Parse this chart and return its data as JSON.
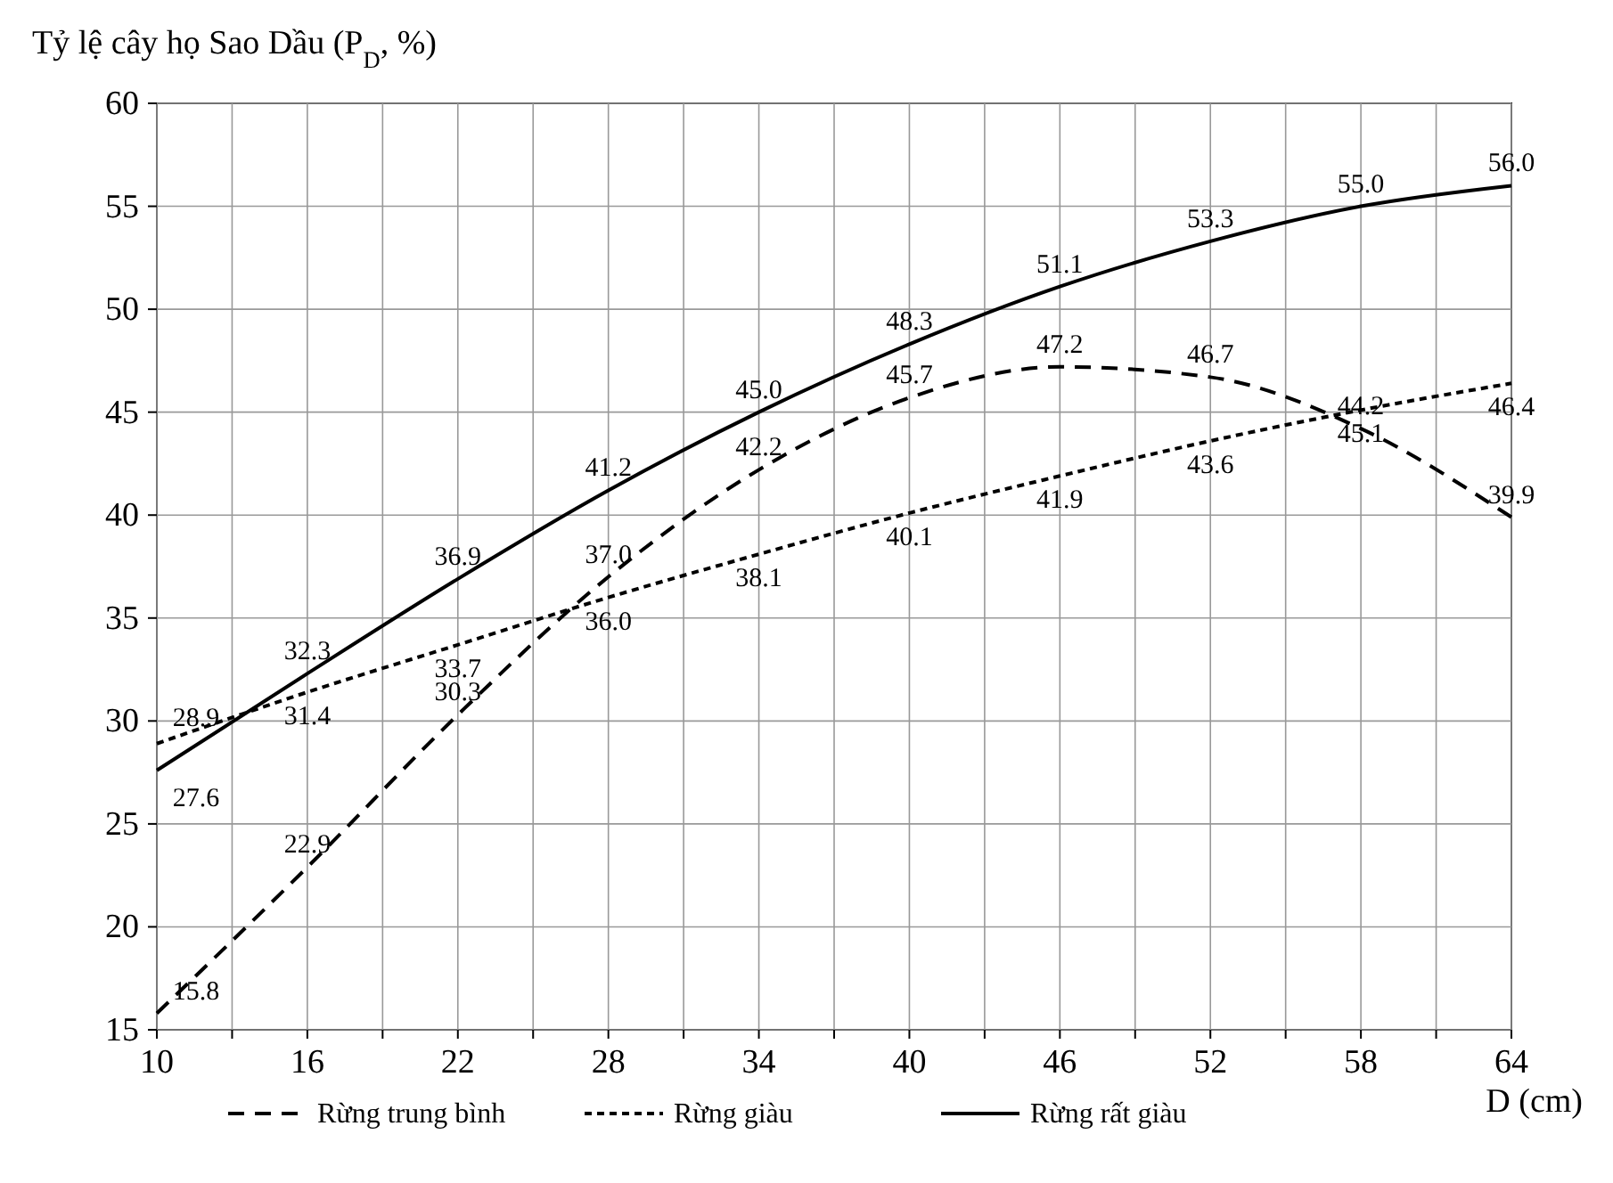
{
  "chart_data": {
    "type": "line",
    "ylabel": "Tỷ lệ cây họ Sao Dầu (P$_{D}$, %)",
    "xlabel": "D (cm)",
    "x": [
      10,
      16,
      22,
      28,
      34,
      40,
      46,
      52,
      58,
      64
    ],
    "xlim": [
      10,
      64
    ],
    "xticks": [
      10,
      {
        "value": 13,
        "label": null
      },
      16,
      {
        "value": 19,
        "label": null
      },
      22,
      {
        "value": 25,
        "label": null
      },
      28,
      {
        "value": 31,
        "label": null
      },
      34,
      {
        "value": 37,
        "label": null
      },
      40,
      {
        "value": 43,
        "label": null
      },
      46,
      {
        "value": 49,
        "label": null
      },
      52,
      {
        "value": 55,
        "label": null
      },
      58,
      {
        "value": 61,
        "label": null
      },
      64
    ],
    "ylim": [
      15,
      60
    ],
    "yticks": [
      15,
      20,
      25,
      30,
      35,
      40,
      45,
      50,
      55,
      60
    ],
    "grid": true,
    "legend": "bottom",
    "marker": "none",
    "series": [
      {
        "name": "Rừng trung bình",
        "color": "#000000",
        "line_style": "dashed",
        "values": [
          15.8,
          22.9,
          30.3,
          37.0,
          42.2,
          45.7,
          47.2,
          46.7,
          44.2,
          39.9
        ],
        "value_labels": [
          "15.8",
          "22.9",
          "30.3",
          "37.0",
          "42.2",
          "45.7",
          "47.2",
          "46.7",
          "44.2",
          "39.9"
        ]
      },
      {
        "name": "Rừng giàu",
        "color": "#000000",
        "line_style": "dotted",
        "values": [
          28.9,
          31.4,
          33.7,
          36.0,
          38.1,
          40.1,
          41.9,
          43.6,
          45.1,
          46.4
        ],
        "value_labels": [
          "28.9",
          "31.4",
          "33.7",
          "36.0",
          "38.1",
          "40.1",
          "41.9",
          "43.6",
          "45.1",
          "46.4"
        ]
      },
      {
        "name": "Rừng rất giàu",
        "color": "#000000",
        "line_style": "solid",
        "values": [
          27.6,
          32.3,
          36.9,
          41.2,
          45.0,
          48.3,
          51.1,
          53.3,
          55.0,
          56.0
        ],
        "value_labels": [
          "27.6",
          "32.3",
          "36.9",
          "41.2",
          "45.0",
          "48.3",
          "51.1",
          "53.3",
          "55.0",
          "56.0"
        ]
      }
    ]
  }
}
